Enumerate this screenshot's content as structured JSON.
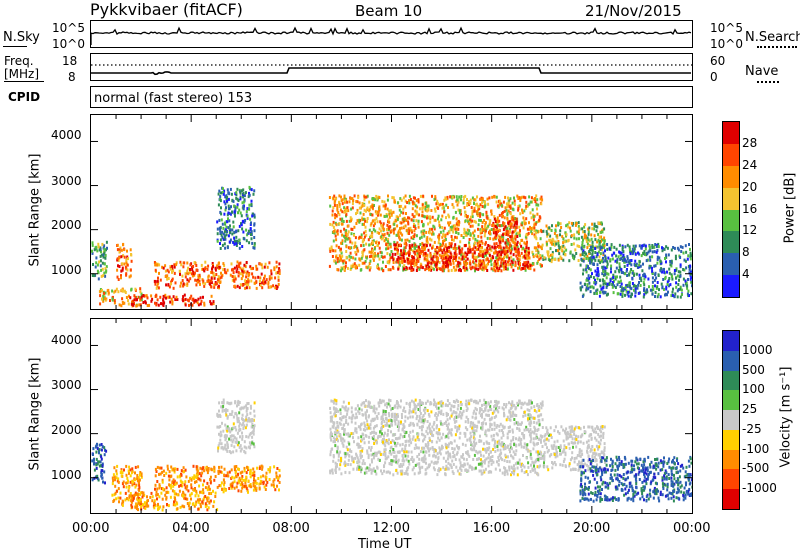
{
  "header": {
    "station": "Pykkvibaer (fitACF)",
    "beam": "Beam 10",
    "date": "21/Nov/2015"
  },
  "nsky_panel": {
    "left_label": "N.Sky",
    "left_ticks": [
      "10^5",
      "10^0"
    ],
    "right_label": "N.Search",
    "right_ticks": [
      "10^5",
      "10^0"
    ]
  },
  "freq_panel": {
    "left_label_top": "Freq.",
    "left_label_unit": "[MHz]",
    "left_ticks": [
      "18",
      "8"
    ],
    "right_label": "Nave",
    "right_ticks": [
      "60",
      "0"
    ],
    "cpid_label": "CPID"
  },
  "cpid": {
    "text": "normal (fast stereo) 153"
  },
  "x_axis": {
    "label": "Time UT",
    "ticks": [
      "00:00",
      "04:00",
      "08:00",
      "12:00",
      "16:00",
      "20:00",
      "00:00"
    ]
  },
  "power_colorbar": {
    "label": "Power [dB]",
    "ticks": [
      "28",
      "24",
      "20",
      "16",
      "12",
      "8",
      "4"
    ],
    "colors": [
      "#1a1aff",
      "#2a5fb0",
      "#2e8b57",
      "#58c040",
      "#f4c430",
      "#ff8c00",
      "#ff4500",
      "#e00000"
    ]
  },
  "velocity_colorbar": {
    "label": "Velocity [m s⁻¹]",
    "ticks": [
      "1000",
      "500",
      "100",
      "25",
      "-25",
      "-100",
      "-500",
      "-1000"
    ],
    "colors": [
      "#2222cc",
      "#2a5fb0",
      "#2e8b57",
      "#58c040",
      "#c8c8c8",
      "#ffd000",
      "#ff8c00",
      "#ff4500",
      "#e00000"
    ]
  },
  "chart_data": [
    {
      "type": "heatmap",
      "title": "",
      "xlabel": "Time UT",
      "ylabel": "Slant Range [km]",
      "xlim_hours": [
        0,
        24
      ],
      "ylim": [
        200,
        4600
      ],
      "y_ticks": [
        1000,
        2000,
        3000,
        4000
      ],
      "colorbar": "Power [dB]",
      "scatter_regions": [
        {
          "t0": 0.0,
          "t1": 0.6,
          "r0": 900,
          "r1": 1800,
          "level": 12
        },
        {
          "t0": 0.3,
          "t1": 2.0,
          "r0": 300,
          "r1": 700,
          "level": 20
        },
        {
          "t0": 1.0,
          "t1": 1.6,
          "r0": 900,
          "r1": 1700,
          "level": 24
        },
        {
          "t0": 1.5,
          "t1": 5.0,
          "r0": 300,
          "r1": 550,
          "level": 28
        },
        {
          "t0": 2.5,
          "t1": 7.5,
          "r0": 700,
          "r1": 1300,
          "level": 24
        },
        {
          "t0": 5.0,
          "t1": 6.5,
          "r0": 1600,
          "r1": 3000,
          "level": 8
        },
        {
          "t0": 9.5,
          "t1": 18.0,
          "r0": 1100,
          "r1": 2800,
          "level": 20
        },
        {
          "t0": 12.0,
          "t1": 17.5,
          "r0": 1100,
          "r1": 1700,
          "level": 28
        },
        {
          "t0": 16.0,
          "t1": 17.0,
          "r0": 1500,
          "r1": 2300,
          "level": 28
        },
        {
          "t0": 18.0,
          "t1": 20.5,
          "r0": 1300,
          "r1": 2200,
          "level": 16
        },
        {
          "t0": 19.5,
          "t1": 24.0,
          "r0": 500,
          "r1": 1700,
          "level": 8
        }
      ]
    },
    {
      "type": "heatmap",
      "title": "",
      "xlabel": "Time UT",
      "ylabel": "Slant Range [km]",
      "xlim_hours": [
        0,
        24
      ],
      "ylim": [
        200,
        4600
      ],
      "y_ticks": [
        1000,
        2000,
        3000,
        4000
      ],
      "colorbar": "Velocity [m s⁻¹]",
      "scatter_regions": [
        {
          "t0": 0.0,
          "t1": 0.6,
          "r0": 900,
          "r1": 1800,
          "level": 500
        },
        {
          "t0": 0.8,
          "t1": 2.0,
          "r0": 400,
          "r1": 1300,
          "level": -500
        },
        {
          "t0": 1.5,
          "t1": 5.0,
          "r0": 300,
          "r1": 700,
          "level": -100
        },
        {
          "t0": 2.5,
          "t1": 7.5,
          "r0": 700,
          "r1": 1300,
          "level": -100
        },
        {
          "t0": 5.0,
          "t1": 6.5,
          "r0": 1600,
          "r1": 2800,
          "level": 0
        },
        {
          "t0": 9.5,
          "t1": 18.0,
          "r0": 1100,
          "r1": 2800,
          "level": 0
        },
        {
          "t0": 18.0,
          "t1": 20.5,
          "r0": 1200,
          "r1": 2200,
          "level": 0
        },
        {
          "t0": 19.5,
          "t1": 24.0,
          "r0": 500,
          "r1": 1500,
          "level": 500
        }
      ]
    }
  ]
}
